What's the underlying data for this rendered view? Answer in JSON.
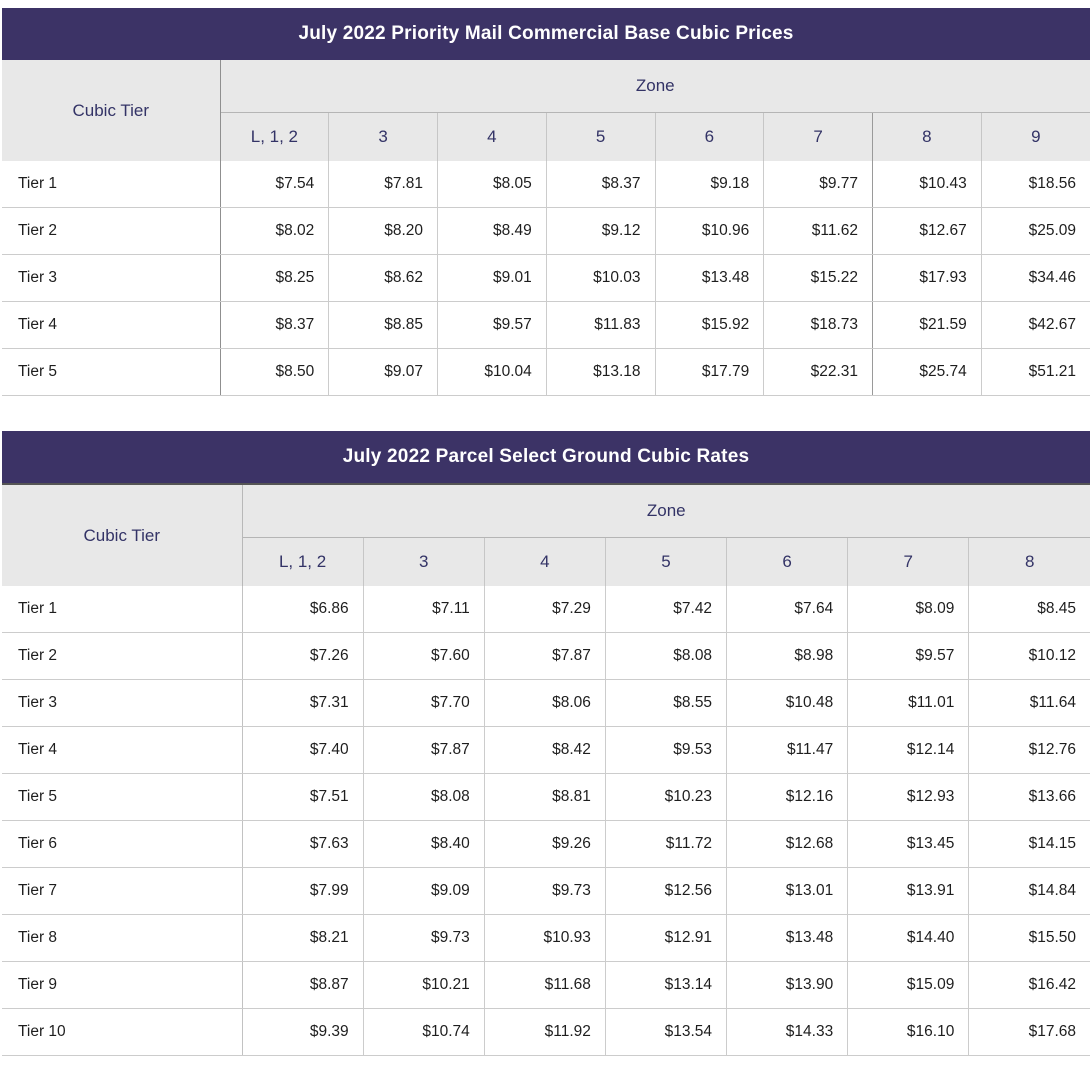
{
  "colors": {
    "title_bar": "#3c3366",
    "header_background": "#e8e8e8",
    "header_text": "#333366",
    "body_text": "#1e1e1e"
  },
  "table1": {
    "title": "July 2022 Priority Mail Commercial Base Cubic Prices",
    "tier_header": "Cubic Tier",
    "zone_header": "Zone",
    "zones": [
      "L, 1, 2",
      "3",
      "4",
      "5",
      "6",
      "7",
      "8",
      "9"
    ],
    "rows": [
      {
        "tier": "Tier 1",
        "prices": [
          "$7.54",
          "$7.81",
          "$8.05",
          "$8.37",
          "$9.18",
          "$9.77",
          "$10.43",
          "$18.56"
        ]
      },
      {
        "tier": "Tier 2",
        "prices": [
          "$8.02",
          "$8.20",
          "$8.49",
          "$9.12",
          "$10.96",
          "$11.62",
          "$12.67",
          "$25.09"
        ]
      },
      {
        "tier": "Tier 3",
        "prices": [
          "$8.25",
          "$8.62",
          "$9.01",
          "$10.03",
          "$13.48",
          "$15.22",
          "$17.93",
          "$34.46"
        ]
      },
      {
        "tier": "Tier 4",
        "prices": [
          "$8.37",
          "$8.85",
          "$9.57",
          "$11.83",
          "$15.92",
          "$18.73",
          "$21.59",
          "$42.67"
        ]
      },
      {
        "tier": "Tier 5",
        "prices": [
          "$8.50",
          "$9.07",
          "$10.04",
          "$13.18",
          "$17.79",
          "$22.31",
          "$25.74",
          "$51.21"
        ]
      }
    ]
  },
  "table2": {
    "title": "July 2022 Parcel Select Ground Cubic Rates",
    "tier_header": "Cubic Tier",
    "zone_header": "Zone",
    "zones": [
      "L, 1, 2",
      "3",
      "4",
      "5",
      "6",
      "7",
      "8"
    ],
    "rows": [
      {
        "tier": "Tier 1",
        "prices": [
          "$6.86",
          "$7.11",
          "$7.29",
          "$7.42",
          "$7.64",
          "$8.09",
          "$8.45"
        ]
      },
      {
        "tier": "Tier 2",
        "prices": [
          "$7.26",
          "$7.60",
          "$7.87",
          "$8.08",
          "$8.98",
          "$9.57",
          "$10.12"
        ]
      },
      {
        "tier": "Tier 3",
        "prices": [
          "$7.31",
          "$7.70",
          "$8.06",
          "$8.55",
          "$10.48",
          "$11.01",
          "$11.64"
        ]
      },
      {
        "tier": "Tier 4",
        "prices": [
          "$7.40",
          "$7.87",
          "$8.42",
          "$9.53",
          "$11.47",
          "$12.14",
          "$12.76"
        ]
      },
      {
        "tier": "Tier 5",
        "prices": [
          "$7.51",
          "$8.08",
          "$8.81",
          "$10.23",
          "$12.16",
          "$12.93",
          "$13.66"
        ]
      },
      {
        "tier": "Tier 6",
        "prices": [
          "$7.63",
          "$8.40",
          "$9.26",
          "$11.72",
          "$12.68",
          "$13.45",
          "$14.15"
        ]
      },
      {
        "tier": "Tier 7",
        "prices": [
          "$7.99",
          "$9.09",
          "$9.73",
          "$12.56",
          "$13.01",
          "$13.91",
          "$14.84"
        ]
      },
      {
        "tier": "Tier 8",
        "prices": [
          "$8.21",
          "$9.73",
          "$10.93",
          "$12.91",
          "$13.48",
          "$14.40",
          "$15.50"
        ]
      },
      {
        "tier": "Tier 9",
        "prices": [
          "$8.87",
          "$10.21",
          "$11.68",
          "$13.14",
          "$13.90",
          "$15.09",
          "$16.42"
        ]
      },
      {
        "tier": "Tier 10",
        "prices": [
          "$9.39",
          "$10.74",
          "$11.92",
          "$13.54",
          "$14.33",
          "$16.10",
          "$17.68"
        ]
      }
    ]
  }
}
